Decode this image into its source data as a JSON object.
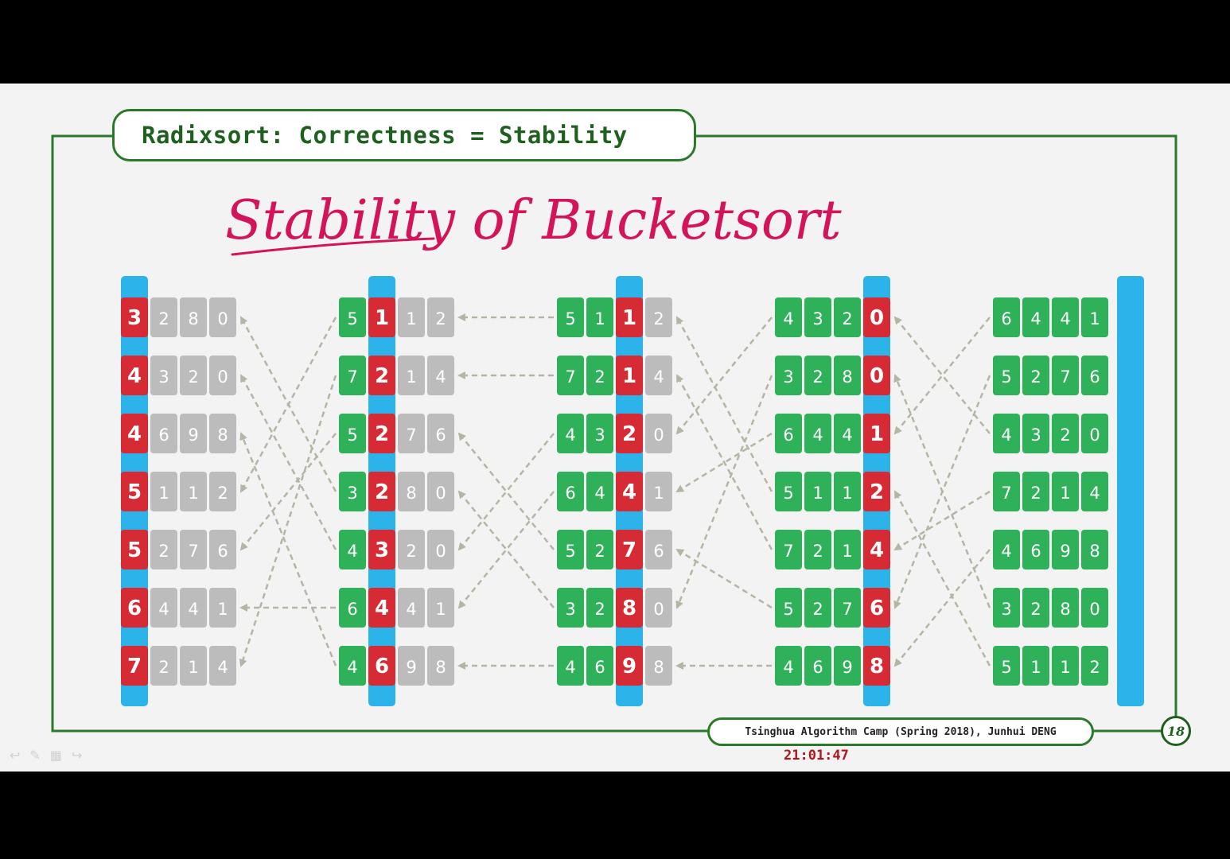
{
  "slide": {
    "title": "Radixsort: Correctness = Stability",
    "handwritten_title": "Stability of Bucketsort",
    "footer": "Tsinghua Algorithm Camp (Spring 2018), Junhui DENG",
    "page_number": "18",
    "timestamp": "21:01:47"
  },
  "colors": {
    "frame": "#2b7a2b",
    "bucket_bar": "#2bb3ea",
    "active_digit": "#d62a34",
    "sorted_digit": "#2fb15a",
    "pending_digit": "#bcbcbc",
    "ink": "#d4145a",
    "arrow": "#b5b5a5"
  },
  "stages": [
    {
      "bar_after_digit": 0,
      "rows": [
        {
          "digits": [
            "3",
            "2",
            "8",
            "0"
          ],
          "states": [
            "active",
            "pending",
            "pending",
            "pending"
          ]
        },
        {
          "digits": [
            "4",
            "3",
            "2",
            "0"
          ],
          "states": [
            "active",
            "pending",
            "pending",
            "pending"
          ]
        },
        {
          "digits": [
            "4",
            "6",
            "9",
            "8"
          ],
          "states": [
            "active",
            "pending",
            "pending",
            "pending"
          ]
        },
        {
          "digits": [
            "5",
            "1",
            "1",
            "2"
          ],
          "states": [
            "active",
            "pending",
            "pending",
            "pending"
          ]
        },
        {
          "digits": [
            "5",
            "2",
            "7",
            "6"
          ],
          "states": [
            "active",
            "pending",
            "pending",
            "pending"
          ]
        },
        {
          "digits": [
            "6",
            "4",
            "4",
            "1"
          ],
          "states": [
            "active",
            "pending",
            "pending",
            "pending"
          ]
        },
        {
          "digits": [
            "7",
            "2",
            "1",
            "4"
          ],
          "states": [
            "active",
            "pending",
            "pending",
            "pending"
          ]
        }
      ]
    },
    {
      "bar_after_digit": 1,
      "rows": [
        {
          "digits": [
            "5",
            "1",
            "1",
            "2"
          ],
          "states": [
            "sorted",
            "active",
            "pending",
            "pending"
          ]
        },
        {
          "digits": [
            "7",
            "2",
            "1",
            "4"
          ],
          "states": [
            "sorted",
            "active",
            "pending",
            "pending"
          ]
        },
        {
          "digits": [
            "5",
            "2",
            "7",
            "6"
          ],
          "states": [
            "sorted",
            "active",
            "pending",
            "pending"
          ]
        },
        {
          "digits": [
            "3",
            "2",
            "8",
            "0"
          ],
          "states": [
            "sorted",
            "active",
            "pending",
            "pending"
          ]
        },
        {
          "digits": [
            "4",
            "3",
            "2",
            "0"
          ],
          "states": [
            "sorted",
            "active",
            "pending",
            "pending"
          ]
        },
        {
          "digits": [
            "6",
            "4",
            "4",
            "1"
          ],
          "states": [
            "sorted",
            "active",
            "pending",
            "pending"
          ]
        },
        {
          "digits": [
            "4",
            "6",
            "9",
            "8"
          ],
          "states": [
            "sorted",
            "active",
            "pending",
            "pending"
          ]
        }
      ]
    },
    {
      "bar_after_digit": 2,
      "rows": [
        {
          "digits": [
            "5",
            "1",
            "1",
            "2"
          ],
          "states": [
            "sorted",
            "sorted",
            "active",
            "pending"
          ]
        },
        {
          "digits": [
            "7",
            "2",
            "1",
            "4"
          ],
          "states": [
            "sorted",
            "sorted",
            "active",
            "pending"
          ]
        },
        {
          "digits": [
            "4",
            "3",
            "2",
            "0"
          ],
          "states": [
            "sorted",
            "sorted",
            "active",
            "pending"
          ]
        },
        {
          "digits": [
            "6",
            "4",
            "4",
            "1"
          ],
          "states": [
            "sorted",
            "sorted",
            "active",
            "pending"
          ]
        },
        {
          "digits": [
            "5",
            "2",
            "7",
            "6"
          ],
          "states": [
            "sorted",
            "sorted",
            "active",
            "pending"
          ]
        },
        {
          "digits": [
            "3",
            "2",
            "8",
            "0"
          ],
          "states": [
            "sorted",
            "sorted",
            "active",
            "pending"
          ]
        },
        {
          "digits": [
            "4",
            "6",
            "9",
            "8"
          ],
          "states": [
            "sorted",
            "sorted",
            "active",
            "pending"
          ]
        }
      ]
    },
    {
      "bar_after_digit": 3,
      "rows": [
        {
          "digits": [
            "4",
            "3",
            "2",
            "0"
          ],
          "states": [
            "sorted",
            "sorted",
            "sorted",
            "active"
          ]
        },
        {
          "digits": [
            "3",
            "2",
            "8",
            "0"
          ],
          "states": [
            "sorted",
            "sorted",
            "sorted",
            "active"
          ]
        },
        {
          "digits": [
            "6",
            "4",
            "4",
            "1"
          ],
          "states": [
            "sorted",
            "sorted",
            "sorted",
            "active"
          ]
        },
        {
          "digits": [
            "5",
            "1",
            "1",
            "2"
          ],
          "states": [
            "sorted",
            "sorted",
            "sorted",
            "active"
          ]
        },
        {
          "digits": [
            "7",
            "2",
            "1",
            "4"
          ],
          "states": [
            "sorted",
            "sorted",
            "sorted",
            "active"
          ]
        },
        {
          "digits": [
            "5",
            "2",
            "7",
            "6"
          ],
          "states": [
            "sorted",
            "sorted",
            "sorted",
            "active"
          ]
        },
        {
          "digits": [
            "4",
            "6",
            "9",
            "8"
          ],
          "states": [
            "sorted",
            "sorted",
            "sorted",
            "active"
          ]
        }
      ]
    },
    {
      "bar_after_digit": 4,
      "rows": [
        {
          "digits": [
            "6",
            "4",
            "4",
            "1"
          ],
          "states": [
            "sorted",
            "sorted",
            "sorted",
            "sorted"
          ]
        },
        {
          "digits": [
            "5",
            "2",
            "7",
            "6"
          ],
          "states": [
            "sorted",
            "sorted",
            "sorted",
            "sorted"
          ]
        },
        {
          "digits": [
            "4",
            "3",
            "2",
            "0"
          ],
          "states": [
            "sorted",
            "sorted",
            "sorted",
            "sorted"
          ]
        },
        {
          "digits": [
            "7",
            "2",
            "1",
            "4"
          ],
          "states": [
            "sorted",
            "sorted",
            "sorted",
            "sorted"
          ]
        },
        {
          "digits": [
            "4",
            "6",
            "9",
            "8"
          ],
          "states": [
            "sorted",
            "sorted",
            "sorted",
            "sorted"
          ]
        },
        {
          "digits": [
            "3",
            "2",
            "8",
            "0"
          ],
          "states": [
            "sorted",
            "sorted",
            "sorted",
            "sorted"
          ]
        },
        {
          "digits": [
            "5",
            "1",
            "1",
            "2"
          ],
          "states": [
            "sorted",
            "sorted",
            "sorted",
            "sorted"
          ]
        }
      ]
    }
  ],
  "transitions": [
    {
      "from_stage": 1,
      "to_stage": 0,
      "pairs": [
        [
          0,
          3
        ],
        [
          1,
          6
        ],
        [
          2,
          4
        ],
        [
          3,
          0
        ],
        [
          4,
          1
        ],
        [
          5,
          5
        ],
        [
          6,
          2
        ]
      ]
    },
    {
      "from_stage": 2,
      "to_stage": 1,
      "pairs": [
        [
          0,
          0
        ],
        [
          1,
          1
        ],
        [
          2,
          4
        ],
        [
          3,
          5
        ],
        [
          4,
          2
        ],
        [
          5,
          3
        ],
        [
          6,
          6
        ]
      ]
    },
    {
      "from_stage": 3,
      "to_stage": 2,
      "pairs": [
        [
          0,
          2
        ],
        [
          1,
          5
        ],
        [
          2,
          3
        ],
        [
          3,
          0
        ],
        [
          4,
          1
        ],
        [
          5,
          4
        ],
        [
          6,
          6
        ]
      ]
    },
    {
      "from_stage": 4,
      "to_stage": 3,
      "pairs": [
        [
          0,
          2
        ],
        [
          1,
          5
        ],
        [
          2,
          0
        ],
        [
          3,
          4
        ],
        [
          4,
          6
        ],
        [
          5,
          1
        ],
        [
          6,
          3
        ]
      ]
    }
  ]
}
